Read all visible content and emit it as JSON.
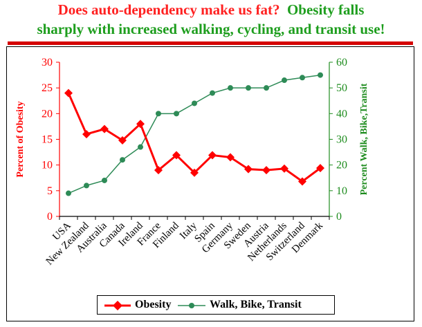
{
  "header": {
    "line1_red": "Does auto-dependency make us fat?",
    "line1_green": "Obesity falls",
    "line2_green": "sharply with increased walking, cycling, and transit use!"
  },
  "colors": {
    "obesity": "#ff0000",
    "walk": "#2e8b57",
    "left_axis": "#ff0000",
    "right_axis": "#1e8c1e"
  },
  "chart_data": {
    "type": "line",
    "categories": [
      "USA",
      "New Zealand",
      "Australia",
      "Canada",
      "Ireland",
      "France",
      "Finland",
      "Italy",
      "Spain",
      "Germany",
      "Sweden",
      "Austria",
      "Netherlands",
      "Switzerland",
      "Denmark"
    ],
    "series": [
      {
        "name": "Obesity",
        "axis": "left",
        "marker": "diamond",
        "values": [
          24,
          16,
          17,
          14.8,
          18,
          9,
          11.9,
          8.5,
          11.9,
          11.5,
          9.2,
          9,
          9.3,
          6.8,
          9.4
        ]
      },
      {
        "name": "Walk, Bike, Transit",
        "axis": "right",
        "marker": "circle",
        "values": [
          9,
          12,
          14,
          22,
          27,
          40,
          40,
          44,
          48,
          50,
          50,
          50,
          53,
          54,
          55
        ]
      }
    ],
    "ylabel": "Percent of Obesity",
    "y2label": "Percent Walk, Bike,Transit",
    "ylim": [
      0,
      30
    ],
    "y2lim": [
      0,
      60
    ],
    "yticks": [
      "0",
      "5",
      "10",
      "15",
      "20",
      "25",
      "30"
    ],
    "y2ticks": [
      "0",
      "10",
      "20",
      "30",
      "40",
      "50",
      "60"
    ],
    "grid": false,
    "legend_position": "bottom"
  }
}
